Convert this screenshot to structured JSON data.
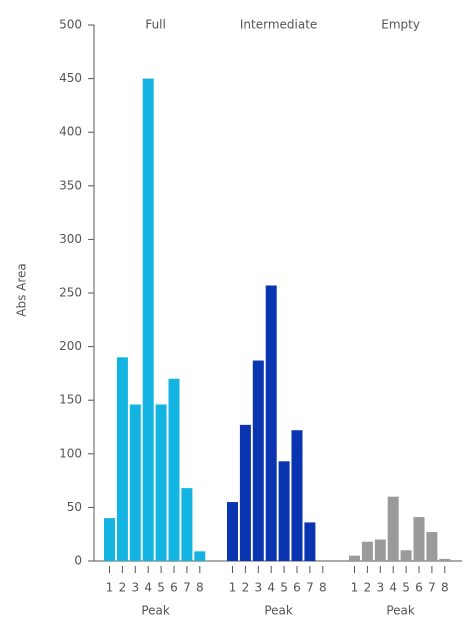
{
  "chart_data": {
    "type": "bar",
    "ylabel": "Abs Area",
    "ylim": [
      0,
      500
    ],
    "yticks": [
      0,
      50,
      100,
      150,
      200,
      250,
      300,
      350,
      400,
      450,
      500
    ],
    "panels": [
      {
        "title": "Full",
        "xlabel": "Peak",
        "color": "#14b4e2",
        "categories": [
          "1",
          "2",
          "3",
          "4",
          "5",
          "6",
          "7",
          "8"
        ],
        "values": [
          40,
          190,
          146,
          450,
          146,
          170,
          68,
          9
        ]
      },
      {
        "title": "Intermediate",
        "xlabel": "Peak",
        "color": "#0a34b0",
        "categories": [
          "1",
          "2",
          "3",
          "4",
          "5",
          "6",
          "7",
          "8"
        ],
        "values": [
          55,
          127,
          187,
          257,
          93,
          122,
          36,
          0
        ]
      },
      {
        "title": "Empty",
        "xlabel": "Peak",
        "color": "#9a9a9a",
        "categories": [
          "1",
          "2",
          "3",
          "4",
          "5",
          "6",
          "7",
          "8"
        ],
        "values": [
          5,
          18,
          20,
          60,
          10,
          41,
          27,
          2
        ]
      }
    ]
  }
}
